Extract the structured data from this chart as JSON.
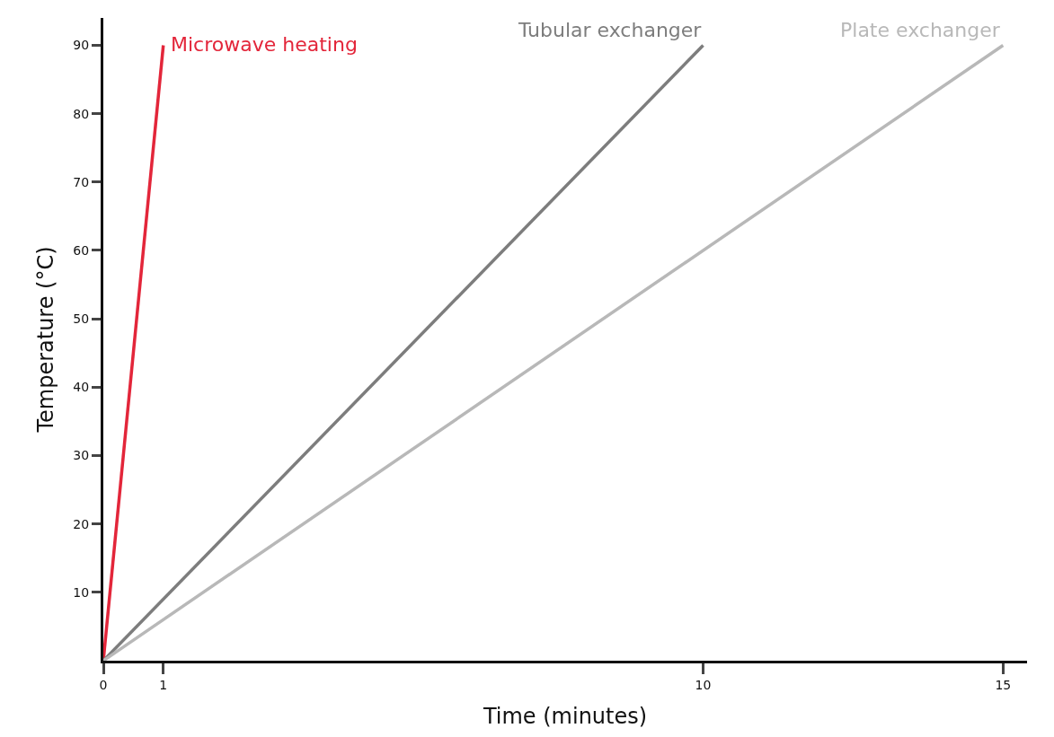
{
  "chart_data": {
    "type": "line",
    "xlabel": "Time (minutes)",
    "ylabel": "Temperature (°C)",
    "series": [
      {
        "name": "Microwave heating",
        "color": "#e3263a",
        "x": [
          0,
          1
        ],
        "values": [
          0,
          90
        ]
      },
      {
        "name": "Tubular exchanger",
        "color": "#7d7d7d",
        "x": [
          0,
          10
        ],
        "values": [
          0,
          90
        ]
      },
      {
        "name": "Plate exchanger",
        "color": "#b8b8b8",
        "x": [
          0,
          15
        ],
        "values": [
          0,
          90
        ]
      }
    ],
    "xlim": [
      0,
      15.4
    ],
    "xticks": [
      0,
      1,
      10,
      15
    ],
    "ylim": [
      0,
      94
    ],
    "yticks": [
      10,
      20,
      30,
      40,
      50,
      60,
      70,
      80,
      90
    ],
    "grid": false,
    "legend": false,
    "marker": "none",
    "line_style": "solid"
  }
}
